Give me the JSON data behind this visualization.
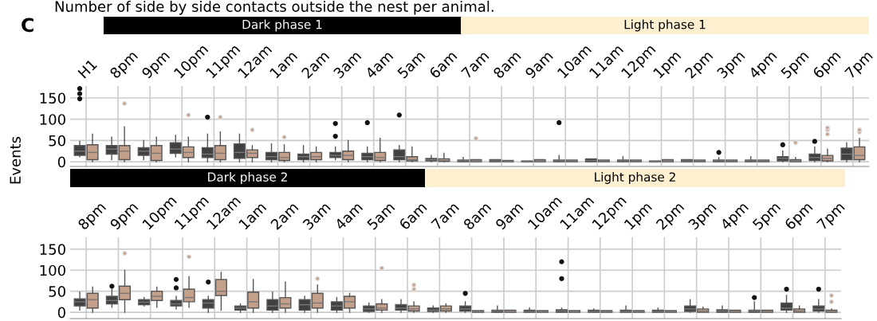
{
  "chart_data": [
    {
      "type": "box",
      "annotations": [
        "Number of side by side contacts outside the nest per animal.",
        "C",
        "Dark phase 1",
        "Light phase 1"
      ],
      "ylabel": "Events",
      "categories": [
        "H1",
        "8pm",
        "9pm",
        "10pm",
        "11pm",
        "12am",
        "1am",
        "2am",
        "3am",
        "4am",
        "5am",
        "6am",
        "7am",
        "8am",
        "9am",
        "10am",
        "11am",
        "12pm",
        "1pm",
        "2pm",
        "3pm",
        "4pm",
        "5pm",
        "6pm",
        "7pm"
      ],
      "ylim": [
        -11,
        178
      ],
      "yticks": [
        0,
        50,
        100,
        150
      ],
      "grid": true,
      "marker": "circle",
      "series": [
        {
          "color": "#404040",
          "boxes": [
            {
              "low": 12,
              "q1": 15,
              "median": 25,
              "q3": 38,
              "high": 48,
              "outliers": [
                148,
                160,
                172
              ]
            },
            {
              "low": 5,
              "q1": 18,
              "median": 30,
              "q3": 38,
              "high": 58
            },
            {
              "low": 5,
              "q1": 15,
              "median": 25,
              "q3": 33,
              "high": 50
            },
            {
              "low": 12,
              "q1": 20,
              "median": 30,
              "q3": 45,
              "high": 62
            },
            {
              "low": 0,
              "q1": 10,
              "median": 18,
              "q3": 33,
              "high": 65,
              "outliers": [
                105
              ]
            },
            {
              "low": 0,
              "q1": 8,
              "median": 22,
              "q3": 42,
              "high": 65
            },
            {
              "low": 0,
              "q1": 5,
              "median": 12,
              "q3": 22,
              "high": 42
            },
            {
              "low": 0,
              "q1": 5,
              "median": 12,
              "q3": 18,
              "high": 38
            },
            {
              "low": 5,
              "q1": 10,
              "median": 15,
              "q3": 22,
              "high": 35,
              "outliers": [
                60,
                90
              ]
            },
            {
              "low": 0,
              "q1": 5,
              "median": 12,
              "q3": 20,
              "high": 35,
              "outliers": [
                92
              ]
            },
            {
              "low": 0,
              "q1": 5,
              "median": 12,
              "q3": 28,
              "high": 38,
              "outliers": [
                110
              ]
            },
            {
              "low": 0,
              "q1": 2,
              "median": 5,
              "q3": 8,
              "high": 15
            },
            {
              "low": 0,
              "q1": 0,
              "median": 2,
              "q3": 4,
              "high": 10
            },
            {
              "low": 0,
              "q1": 0,
              "median": 2,
              "q3": 5,
              "high": 5
            },
            {
              "low": 0,
              "q1": 0,
              "median": 1,
              "q3": 2,
              "high": 2
            },
            {
              "low": 0,
              "q1": 0,
              "median": 2,
              "q3": 4,
              "high": 15,
              "outliers": [
                92
              ]
            },
            {
              "low": 0,
              "q1": 0,
              "median": 3,
              "q3": 7,
              "high": 7
            },
            {
              "low": 0,
              "q1": 0,
              "median": 2,
              "q3": 4,
              "high": 12
            },
            {
              "low": 0,
              "q1": 0,
              "median": 1,
              "q3": 2,
              "high": 2
            },
            {
              "low": 0,
              "q1": 0,
              "median": 2,
              "q3": 5,
              "high": 5
            },
            {
              "low": 0,
              "q1": 0,
              "median": 2,
              "q3": 4,
              "high": 10,
              "outliers": [
                22
              ]
            },
            {
              "low": 0,
              "q1": 0,
              "median": 2,
              "q3": 4,
              "high": 12
            },
            {
              "low": 0,
              "q1": 2,
              "median": 8,
              "q3": 12,
              "high": 25,
              "outliers": [
                40
              ]
            },
            {
              "low": 0,
              "q1": 3,
              "median": 10,
              "q3": 18,
              "high": 35,
              "outliers": [
                48
              ]
            },
            {
              "low": 0,
              "q1": 5,
              "median": 18,
              "q3": 32,
              "high": 45
            }
          ]
        },
        {
          "color": "#c4a08a",
          "boxes": [
            {
              "low": 0,
              "q1": 5,
              "median": 22,
              "q3": 40,
              "high": 65
            },
            {
              "low": 0,
              "q1": 5,
              "median": 25,
              "q3": 38,
              "high": 82,
              "outliers": [
                137
              ]
            },
            {
              "low": 0,
              "q1": 3,
              "median": 20,
              "q3": 38,
              "high": 58
            },
            {
              "low": 0,
              "q1": 10,
              "median": 22,
              "q3": 35,
              "high": 58,
              "outliers": [
                110
              ]
            },
            {
              "low": 0,
              "q1": 5,
              "median": 20,
              "q3": 38,
              "high": 70,
              "outliers": [
                105
              ]
            },
            {
              "low": 0,
              "q1": 10,
              "median": 20,
              "q3": 28,
              "high": 38,
              "outliers": [
                75
              ]
            },
            {
              "low": 0,
              "q1": 3,
              "median": 10,
              "q3": 22,
              "high": 40,
              "outliers": [
                58
              ]
            },
            {
              "low": 0,
              "q1": 5,
              "median": 12,
              "q3": 22,
              "high": 35
            },
            {
              "low": 0,
              "q1": 5,
              "median": 15,
              "q3": 25,
              "high": 50
            },
            {
              "low": 0,
              "q1": 3,
              "median": 10,
              "q3": 22,
              "high": 55
            },
            {
              "low": 0,
              "q1": 2,
              "median": 5,
              "q3": 12,
              "high": 35
            },
            {
              "low": 0,
              "q1": 1,
              "median": 3,
              "q3": 7,
              "high": 20
            },
            {
              "low": 0,
              "q1": 0,
              "median": 2,
              "q3": 5,
              "high": 5,
              "outliers": [
                55
              ]
            },
            {
              "low": 0,
              "q1": 0,
              "median": 1,
              "q3": 3,
              "high": 3
            },
            {
              "low": 0,
              "q1": 0,
              "median": 2,
              "q3": 5,
              "high": 5
            },
            {
              "low": 0,
              "q1": 0,
              "median": 1,
              "q3": 4,
              "high": 4
            },
            {
              "low": 0,
              "q1": 0,
              "median": 1,
              "q3": 4,
              "high": 4
            },
            {
              "low": 0,
              "q1": 0,
              "median": 1,
              "q3": 4,
              "high": 4
            },
            {
              "low": 0,
              "q1": 0,
              "median": 2,
              "q3": 5,
              "high": 5
            },
            {
              "low": 0,
              "q1": 0,
              "median": 1,
              "q3": 4,
              "high": 4
            },
            {
              "low": 0,
              "q1": 0,
              "median": 1,
              "q3": 4,
              "high": 4
            },
            {
              "low": 0,
              "q1": 0,
              "median": 1,
              "q3": 4,
              "high": 4
            },
            {
              "low": 0,
              "q1": 0,
              "median": 2,
              "q3": 5,
              "high": 10,
              "outliers": [
                45
              ]
            },
            {
              "low": 0,
              "q1": 2,
              "median": 8,
              "q3": 15,
              "high": 30,
              "outliers": [
                65,
                75,
                80
              ]
            },
            {
              "low": 0,
              "q1": 5,
              "median": 15,
              "q3": 35,
              "high": 55,
              "outliers": [
                70,
                75
              ]
            }
          ]
        }
      ]
    },
    {
      "type": "box",
      "annotations": [
        "Dark phase 2",
        "Light phase 2"
      ],
      "categories": [
        "8pm",
        "9pm",
        "10pm",
        "11pm",
        "12am",
        "1am",
        "2am",
        "3am",
        "4am",
        "5am",
        "6am",
        "7am",
        "8am",
        "9am",
        "10am",
        "11am",
        "12pm",
        "1pm",
        "2pm",
        "3pm",
        "4pm",
        "5pm",
        "6pm",
        "7pm"
      ],
      "ylim": [
        -15,
        178
      ],
      "yticks": [
        0,
        50,
        100,
        150
      ],
      "grid": true,
      "marker": "circle",
      "series": [
        {
          "color": "#404040",
          "boxes": [
            {
              "low": 5,
              "q1": 15,
              "median": 25,
              "q3": 32,
              "high": 48
            },
            {
              "low": 12,
              "q1": 20,
              "median": 28,
              "q3": 38,
              "high": 55,
              "outliers": [
                62
              ]
            },
            {
              "low": 15,
              "q1": 18,
              "median": 24,
              "q3": 30,
              "high": 35
            },
            {
              "low": 8,
              "q1": 15,
              "median": 20,
              "q3": 28,
              "high": 38,
              "outliers": [
                58,
                78
              ]
            },
            {
              "low": 0,
              "q1": 10,
              "median": 22,
              "q3": 30,
              "high": 38,
              "outliers": [
                72
              ]
            },
            {
              "low": 0,
              "q1": 5,
              "median": 10,
              "q3": 15,
              "high": 20
            },
            {
              "low": 0,
              "q1": 5,
              "median": 15,
              "q3": 30,
              "high": 48
            },
            {
              "low": 0,
              "q1": 5,
              "median": 18,
              "q3": 30,
              "high": 38
            },
            {
              "low": 0,
              "q1": 5,
              "median": 15,
              "q3": 25,
              "high": 35
            },
            {
              "low": 0,
              "q1": 2,
              "median": 8,
              "q3": 15,
              "high": 22
            },
            {
              "low": 0,
              "q1": 5,
              "median": 10,
              "q3": 18,
              "high": 30
            },
            {
              "low": 0,
              "q1": 2,
              "median": 5,
              "q3": 10,
              "high": 15
            },
            {
              "low": 0,
              "q1": 3,
              "median": 8,
              "q3": 15,
              "high": 25,
              "outliers": [
                45
              ]
            },
            {
              "low": 0,
              "q1": 0,
              "median": 3,
              "q3": 5,
              "high": 15
            },
            {
              "low": 0,
              "q1": 0,
              "median": 2,
              "q3": 5,
              "high": 10
            },
            {
              "low": 0,
              "q1": 0,
              "median": 3,
              "q3": 6,
              "high": 10,
              "outliers": [
                80,
                120
              ]
            },
            {
              "low": 0,
              "q1": 0,
              "median": 2,
              "q3": 5,
              "high": 8
            },
            {
              "low": 0,
              "q1": 0,
              "median": 2,
              "q3": 5,
              "high": 15
            },
            {
              "low": 0,
              "q1": 0,
              "median": 2,
              "q3": 5,
              "high": 10
            },
            {
              "low": 0,
              "q1": 2,
              "median": 8,
              "q3": 15,
              "high": 30
            },
            {
              "low": 0,
              "q1": 0,
              "median": 3,
              "q3": 6,
              "high": 15
            },
            {
              "low": 0,
              "q1": 0,
              "median": 3,
              "q3": 5,
              "high": 25,
              "outliers": [
                35
              ]
            },
            {
              "low": 0,
              "q1": 5,
              "median": 10,
              "q3": 22,
              "high": 40,
              "outliers": [
                55
              ]
            },
            {
              "low": 0,
              "q1": 3,
              "median": 8,
              "q3": 15,
              "high": 30,
              "outliers": [
                55
              ]
            }
          ]
        },
        {
          "color": "#c4a08a",
          "boxes": [
            {
              "low": 0,
              "q1": 10,
              "median": 30,
              "q3": 45,
              "high": 60
            },
            {
              "low": 0,
              "q1": 30,
              "median": 45,
              "q3": 62,
              "high": 100,
              "outliers": [
                140
              ]
            },
            {
              "low": 12,
              "q1": 28,
              "median": 38,
              "q3": 50,
              "high": 60
            },
            {
              "low": 12,
              "q1": 25,
              "median": 35,
              "q3": 55,
              "high": 85,
              "outliers": [
                132
              ]
            },
            {
              "low": 5,
              "q1": 40,
              "median": 50,
              "q3": 78,
              "high": 95
            },
            {
              "low": 0,
              "q1": 10,
              "median": 25,
              "q3": 48,
              "high": 78
            },
            {
              "low": 0,
              "q1": 10,
              "median": 20,
              "q3": 35,
              "high": 72
            },
            {
              "low": 0,
              "q1": 10,
              "median": 22,
              "q3": 45,
              "high": 65,
              "outliers": [
                80
              ]
            },
            {
              "low": 0,
              "q1": 10,
              "median": 25,
              "q3": 38,
              "high": 45
            },
            {
              "low": 0,
              "q1": 5,
              "median": 10,
              "q3": 20,
              "high": 30,
              "outliers": [
                105
              ]
            },
            {
              "low": 0,
              "q1": 3,
              "median": 8,
              "q3": 15,
              "high": 25,
              "outliers": [
                55,
                65
              ]
            },
            {
              "low": 0,
              "q1": 3,
              "median": 8,
              "q3": 15,
              "high": 20
            },
            {
              "low": 0,
              "q1": 0,
              "median": 1,
              "q3": 4,
              "high": 4
            },
            {
              "low": 0,
              "q1": 0,
              "median": 2,
              "q3": 5,
              "high": 5
            },
            {
              "low": 0,
              "q1": 0,
              "median": 1,
              "q3": 4,
              "high": 4
            },
            {
              "low": 0,
              "q1": 0,
              "median": 1,
              "q3": 4,
              "high": 4
            },
            {
              "low": 0,
              "q1": 0,
              "median": 1,
              "q3": 4,
              "high": 4
            },
            {
              "low": 0,
              "q1": 0,
              "median": 1,
              "q3": 4,
              "high": 4
            },
            {
              "low": 0,
              "q1": 0,
              "median": 1,
              "q3": 4,
              "high": 4
            },
            {
              "low": 0,
              "q1": 0,
              "median": 3,
              "q3": 8,
              "high": 12
            },
            {
              "low": 0,
              "q1": 0,
              "median": 2,
              "q3": 5,
              "high": 5
            },
            {
              "low": 0,
              "q1": 0,
              "median": 2,
              "q3": 5,
              "high": 5
            },
            {
              "low": 0,
              "q1": 0,
              "median": 3,
              "q3": 8,
              "high": 15
            },
            {
              "low": 0,
              "q1": 0,
              "median": 2,
              "q3": 5,
              "high": 8,
              "outliers": [
                25,
                40
              ]
            }
          ]
        }
      ]
    }
  ]
}
